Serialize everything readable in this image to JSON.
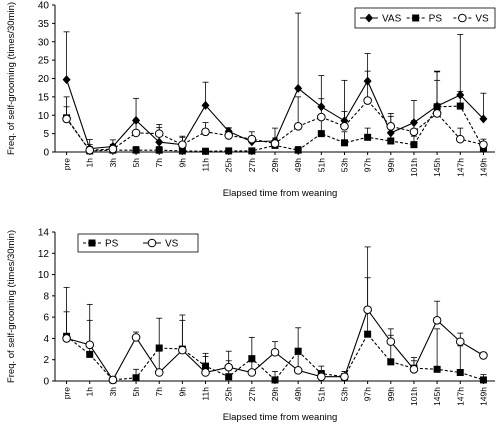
{
  "chart_data": [
    {
      "type": "line",
      "xlabel": "Elapsed time from weaning",
      "ylabel": "Freq. of self-grooming (times/30min)",
      "ylim": [
        0,
        40
      ],
      "yticks": [
        0,
        5,
        10,
        15,
        20,
        25,
        30,
        35,
        40
      ],
      "categories": [
        "pre",
        "1h",
        "3h",
        "5h",
        "7h",
        "9h",
        "11h",
        "25h",
        "27h",
        "29h",
        "49h",
        "51h",
        "53h",
        "97h",
        "99h",
        "101h",
        "145h",
        "147h",
        "149h"
      ],
      "legend": "top-right",
      "grid": false,
      "series": [
        {
          "name": "VAS",
          "marker": "diamond",
          "line": "solid",
          "values": [
            19.7,
            0.9,
            1.5,
            8.6,
            2.7,
            2.0,
            12.7,
            5.6,
            2.8,
            3.0,
            17.3,
            12.3,
            8.5,
            19.3,
            5.2,
            8.0,
            12.5,
            15.5,
            9.0
          ],
          "err": [
            13.0,
            2.5,
            1.8,
            6.0,
            4.0,
            2.3,
            6.3,
            1.0,
            1.5,
            3.5,
            20.5,
            8.5,
            11.0,
            7.5,
            4.5,
            6.0,
            9.5,
            16.5,
            7.0
          ]
        },
        {
          "name": "PS",
          "marker": "square",
          "line": "dashed",
          "values": [
            9.3,
            0.3,
            0.5,
            0.5,
            0.5,
            0.3,
            0.2,
            0.3,
            0.3,
            1.8,
            0.5,
            5.0,
            2.5,
            4.0,
            3.0,
            2.0,
            12.3,
            12.5,
            1.0
          ],
          "err": [
            3.0,
            1.2,
            1.5,
            1.0,
            1.0,
            0.8,
            0.8,
            0.8,
            0.8,
            1.5,
            1.0,
            4.0,
            3.0,
            2.5,
            2.5,
            2.3,
            9.5,
            4.0,
            1.5
          ]
        },
        {
          "name": "VS",
          "marker": "circle",
          "line": "dashed",
          "values": [
            9.0,
            0.5,
            0.8,
            5.2,
            5.0,
            2.0,
            5.5,
            4.5,
            3.5,
            2.3,
            7.0,
            9.5,
            7.0,
            14.0,
            7.0,
            5.5,
            10.5,
            3.5,
            2.0
          ],
          "err": [
            6.0,
            1.5,
            1.3,
            3.0,
            2.5,
            2.0,
            2.5,
            2.0,
            2.0,
            1.5,
            8.0,
            5.0,
            4.0,
            8.0,
            3.5,
            3.0,
            9.0,
            3.0,
            1.5
          ]
        }
      ]
    },
    {
      "type": "line",
      "xlabel": "Elapsed time from weaning",
      "ylabel": "Freq. of self-grooming (times/30min)",
      "ylim": [
        0,
        14
      ],
      "yticks": [
        0,
        2,
        4,
        6,
        8,
        10,
        12,
        14
      ],
      "categories": [
        "pre",
        "1h",
        "3h",
        "5h",
        "7h",
        "9h",
        "11h",
        "25h",
        "27h",
        "29h",
        "49h",
        "51h",
        "53h",
        "97h",
        "99h",
        "101h",
        "145h",
        "147h",
        "149h"
      ],
      "legend": "top-left",
      "grid": false,
      "series": [
        {
          "name": "PS",
          "marker": "square",
          "line": "dashed",
          "values": [
            4.2,
            2.5,
            0.1,
            0.3,
            3.1,
            3.0,
            1.4,
            0.4,
            2.1,
            0.1,
            2.8,
            0.7,
            0.4,
            4.4,
            1.8,
            1.2,
            1.1,
            0.8,
            0.1
          ],
          "err": [
            4.6,
            3.2,
            0.3,
            0.8,
            2.8,
            3.2,
            1.2,
            1.5,
            2.0,
            0.8,
            2.2,
            0.7,
            0.5,
            8.2,
            2.5,
            1.0,
            3.8,
            2.5,
            0.5
          ]
        },
        {
          "name": "VS",
          "marker": "circle",
          "line": "solid",
          "values": [
            4.0,
            3.4,
            0.1,
            4.1,
            0.8,
            2.9,
            0.8,
            1.3,
            0.8,
            2.7,
            1.0,
            0.4,
            0.4,
            6.7,
            3.7,
            1.1,
            5.7,
            3.7,
            2.4
          ],
          "err": [
            2.5,
            3.8,
            0.2,
            0.5,
            2.0,
            2.8,
            1.5,
            1.5,
            1.0,
            1.0,
            1.5,
            0.5,
            0.5,
            3.0,
            1.2,
            0.8,
            1.8,
            0.8,
            0.3
          ]
        }
      ]
    }
  ]
}
